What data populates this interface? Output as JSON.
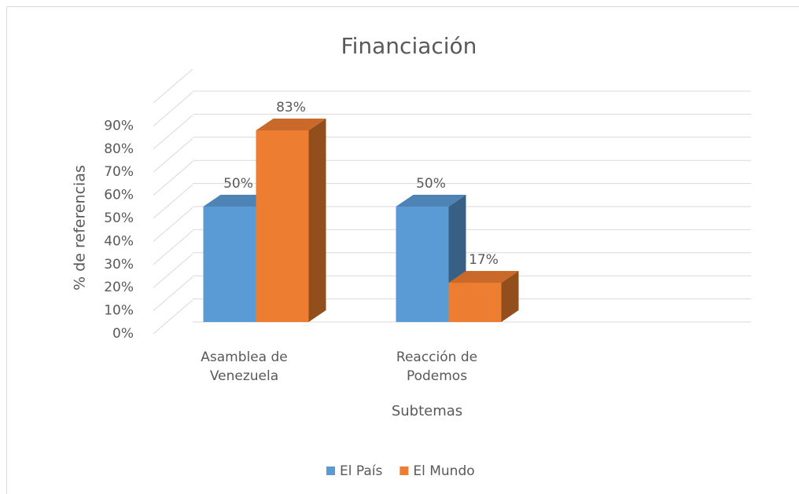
{
  "chart_data": {
    "type": "bar3d",
    "title": "Financiación",
    "categories": [
      "Asamblea de Venezuela",
      "Reacción de Podemos"
    ],
    "series": [
      {
        "name": "El País",
        "color": "#5b9bd5",
        "values": [
          50,
          50
        ],
        "value_labels": [
          "50%",
          "50%"
        ]
      },
      {
        "name": "El Mundo",
        "color": "#ed7d31",
        "values": [
          83,
          17
        ],
        "value_labels": [
          "83%",
          "17%"
        ]
      }
    ],
    "xlabel": "Subtemas",
    "ylabel": "% de referencias",
    "ylim": [
      0,
      100
    ],
    "yticks": [
      {
        "value": 0,
        "label": "0%"
      },
      {
        "value": 10,
        "label": "10%"
      },
      {
        "value": 20,
        "label": "20%"
      },
      {
        "value": 30,
        "label": "30%"
      },
      {
        "value": 40,
        "label": "40%"
      },
      {
        "value": 50,
        "label": "50%"
      },
      {
        "value": 60,
        "label": "60%"
      },
      {
        "value": 70,
        "label": "70%"
      },
      {
        "value": 80,
        "label": "80%"
      },
      {
        "value": 90,
        "label": "90%"
      }
    ],
    "grid": true,
    "legend": "bottom"
  }
}
